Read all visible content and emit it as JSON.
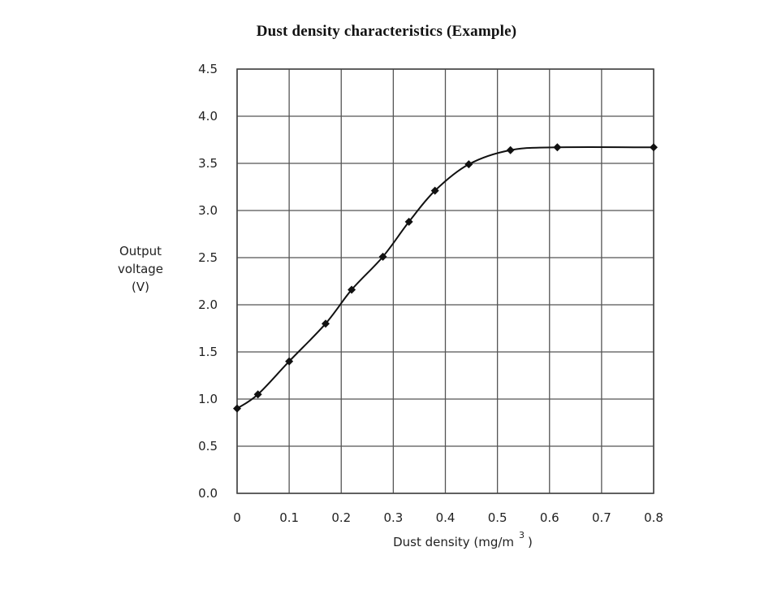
{
  "chart_data": {
    "type": "line",
    "title": "Dust density characteristics (Example)",
    "xlabel": "Dust density (mg/m",
    "xlabel_superscript": "3",
    "xlabel_suffix": ")",
    "ylabel_lines": [
      "Output",
      "voltage",
      "(V)"
    ],
    "xlim": [
      0,
      0.8
    ],
    "ylim": [
      0,
      4.5
    ],
    "x_ticks": [
      "0",
      "0.1",
      "0.2",
      "0.3",
      "0.4",
      "0.5",
      "0.6",
      "0.7",
      "0.8"
    ],
    "y_ticks": [
      "0.0",
      "0.5",
      "1.0",
      "1.5",
      "2.0",
      "2.5",
      "3.0",
      "3.5",
      "4.0",
      "4.5"
    ],
    "grid": true,
    "legend": null,
    "series": [
      {
        "name": "Output voltage",
        "marker": "diamond",
        "color": "#111111",
        "x": [
          0.0,
          0.04,
          0.1,
          0.17,
          0.22,
          0.28,
          0.33,
          0.38,
          0.445,
          0.525,
          0.615,
          0.8
        ],
        "y": [
          0.9,
          1.05,
          1.4,
          1.8,
          2.16,
          2.51,
          2.88,
          3.21,
          3.49,
          3.64,
          3.67,
          3.67
        ]
      }
    ]
  }
}
